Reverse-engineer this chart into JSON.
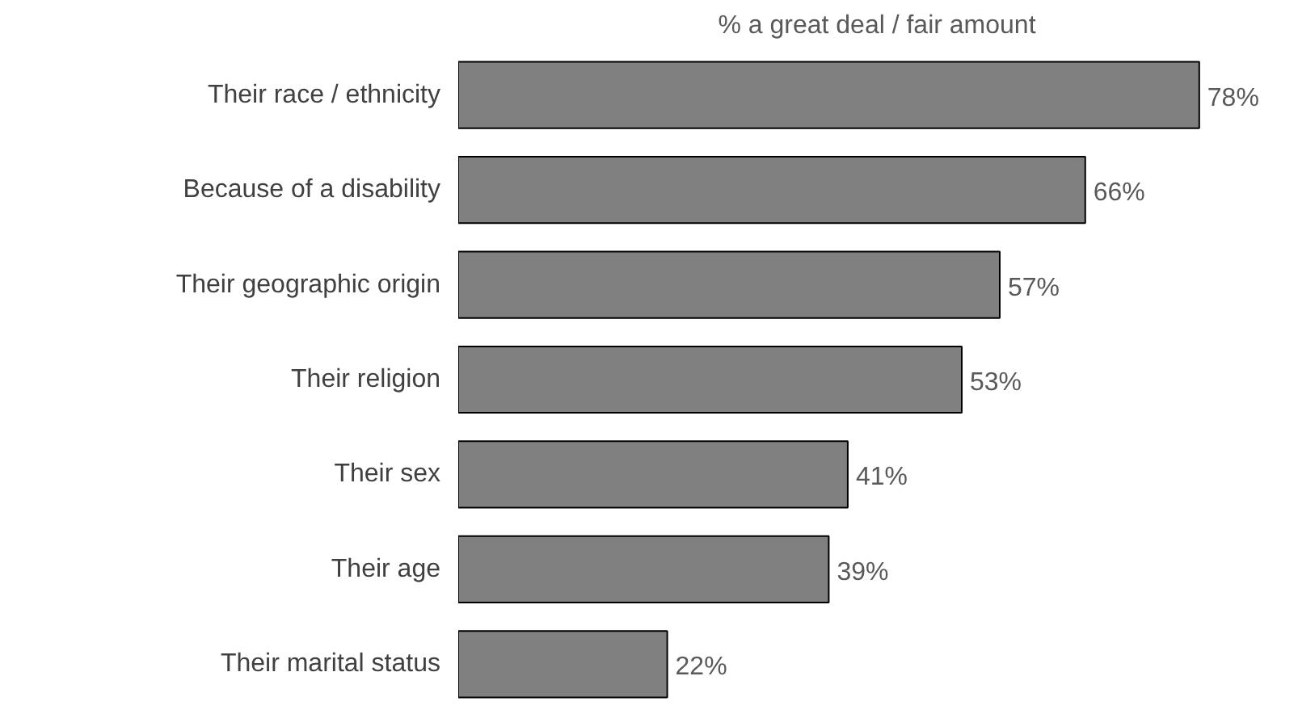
{
  "chart_data": {
    "type": "bar",
    "orientation": "horizontal",
    "title": "% a great deal / fair amount",
    "categories": [
      "Their race / ethnicity",
      "Because of a disability",
      "Their geographic origin",
      "Their religion",
      "Their sex",
      "Their age",
      "Their marital status"
    ],
    "values": [
      78,
      66,
      57,
      53,
      41,
      39,
      22
    ],
    "value_labels": [
      "78%",
      "66%",
      "57%",
      "53%",
      "41%",
      "39%",
      "22%"
    ],
    "color": "#808080"
  }
}
